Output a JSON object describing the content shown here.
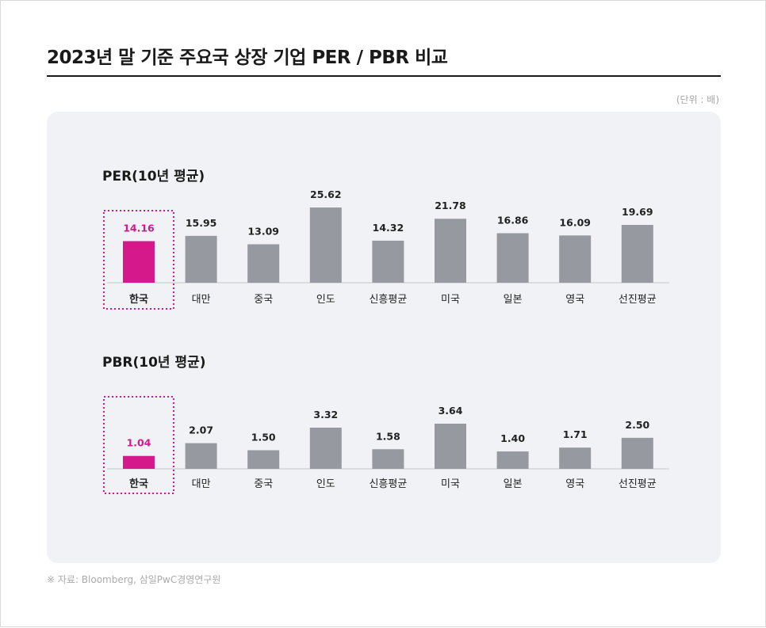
{
  "header": {
    "title": "2023년 말 기준 주요국 상장 기업 PER / PBR 비교",
    "unit_label": "(단위 : 배)"
  },
  "footer": {
    "source": "※ 자료: Bloomberg, 삼일PwC경영연구원"
  },
  "colors": {
    "highlight": "#d6198a",
    "bar": "#96999f",
    "axis": "#c4c6ca",
    "panel": "#f0f2f6"
  },
  "chart_data": [
    {
      "id": "per",
      "type": "bar",
      "title": "PER(10년 평균)",
      "xlabel": "",
      "ylabel": "",
      "ylim": [
        0,
        25.62
      ],
      "highlight_index": 0,
      "categories": [
        "한국",
        "대만",
        "중국",
        "인도",
        "신흥평균",
        "미국",
        "일본",
        "영국",
        "선진평균"
      ],
      "values": [
        14.16,
        15.95,
        13.09,
        25.62,
        14.32,
        21.78,
        16.86,
        16.09,
        19.69
      ],
      "labels": [
        "14.16",
        "15.95",
        "13.09",
        "25.62",
        "14.32",
        "21.78",
        "16.86",
        "16.09",
        "19.69"
      ]
    },
    {
      "id": "pbr",
      "type": "bar",
      "title": "PBR(10년 평균)",
      "xlabel": "",
      "ylabel": "",
      "ylim": [
        0,
        3.64
      ],
      "highlight_index": 0,
      "categories": [
        "한국",
        "대만",
        "중국",
        "인도",
        "신흥평균",
        "미국",
        "일본",
        "영국",
        "선진평균"
      ],
      "values": [
        1.04,
        2.07,
        1.5,
        3.32,
        1.58,
        3.64,
        1.4,
        1.71,
        2.5
      ],
      "labels": [
        "1.04",
        "2.07",
        "1.50",
        "3.32",
        "1.58",
        "3.64",
        "1.40",
        "1.71",
        "2.50"
      ]
    }
  ]
}
